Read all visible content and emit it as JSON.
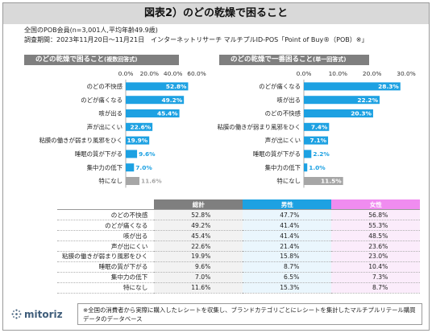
{
  "title": "図表2）のどの乾燥で困ること",
  "meta": {
    "line1": "全国のPOB会員(n=3,001人,平均年齢49.9歳)",
    "line2": "調査期間：2023年11月20日～11月21日　インターネットリサーチ マルチプルID-POS「Point of Buy®（POB）※」"
  },
  "chart_data": [
    {
      "type": "bar",
      "title": "のどの乾燥で困ること",
      "subtitle": "(複数回答式)",
      "categories": [
        "のどの不快感",
        "のどが痛くなる",
        "咳が出る",
        "声が出にくい",
        "粘膜の働きが弱まり風邪をひく",
        "睡眠の質が下がる",
        "集中力の低下",
        "特になし"
      ],
      "values": [
        52.8,
        49.2,
        45.4,
        22.6,
        19.9,
        9.6,
        7.0,
        11.6
      ],
      "labels": [
        "52.8%",
        "49.2%",
        "45.4%",
        "22.6%",
        "19.9%",
        "9.6%",
        "7.0%",
        "11.6%"
      ],
      "ticks": [
        "0.0%",
        "20.0%",
        "40.0%",
        "60.0%"
      ],
      "xlim": [
        0,
        60
      ],
      "bar_color": "#1da1e2",
      "last_color": "#a6a6a6"
    },
    {
      "type": "bar",
      "title": "のどの乾燥で一番困ること",
      "subtitle": "(単一回答式)",
      "categories": [
        "のどが痛くなる",
        "咳が出る",
        "のどの不快感",
        "粘膜の働きが弱まり風邪をひく",
        "声が出にくい",
        "睡眠の質が下がる",
        "集中力の低下",
        "特になし"
      ],
      "values": [
        28.3,
        22.2,
        20.3,
        7.4,
        7.1,
        2.2,
        1.0,
        11.5
      ],
      "labels": [
        "28.3%",
        "22.2%",
        "20.3%",
        "7.4%",
        "7.1%",
        "2.2%",
        "1.0%",
        "11.5%"
      ],
      "ticks": [
        "0.0%",
        "10.0%",
        "20.0%",
        "30.0%"
      ],
      "xlim": [
        0,
        30
      ],
      "bar_color": "#1da1e2",
      "last_color": "#a6a6a6"
    },
    {
      "type": "table",
      "columns": [
        "総計",
        "男性",
        "女性"
      ],
      "column_colors": [
        "#7f7f7f",
        "#1da1e2",
        "#f08cf0"
      ],
      "rows": [
        {
          "label": "のどの不快感",
          "values": [
            "52.8%",
            "47.7%",
            "56.8%"
          ]
        },
        {
          "label": "のどが痛くなる",
          "values": [
            "49.2%",
            "41.4%",
            "55.3%"
          ]
        },
        {
          "label": "咳が出る",
          "values": [
            "45.4%",
            "41.4%",
            "48.5%"
          ]
        },
        {
          "label": "声が出にくい",
          "values": [
            "22.6%",
            "21.4%",
            "23.6%"
          ]
        },
        {
          "label": "粘膜の働きが弱まり風邪をひく",
          "values": [
            "19.9%",
            "15.8%",
            "23.0%"
          ]
        },
        {
          "label": "睡眠の質が下がる",
          "values": [
            "9.6%",
            "8.7%",
            "10.4%"
          ]
        },
        {
          "label": "集中力の低下",
          "values": [
            "7.0%",
            "6.5%",
            "7.3%"
          ]
        },
        {
          "label": "特になし",
          "values": [
            "11.6%",
            "15.3%",
            "8.7%"
          ]
        }
      ]
    }
  ],
  "logo": "mitoriz",
  "note": "※全国の消費者から実際に購入したレシートを収集し、ブランドカテゴリごとにレシートを集計したマルチプルリテール購買データのデータベース"
}
